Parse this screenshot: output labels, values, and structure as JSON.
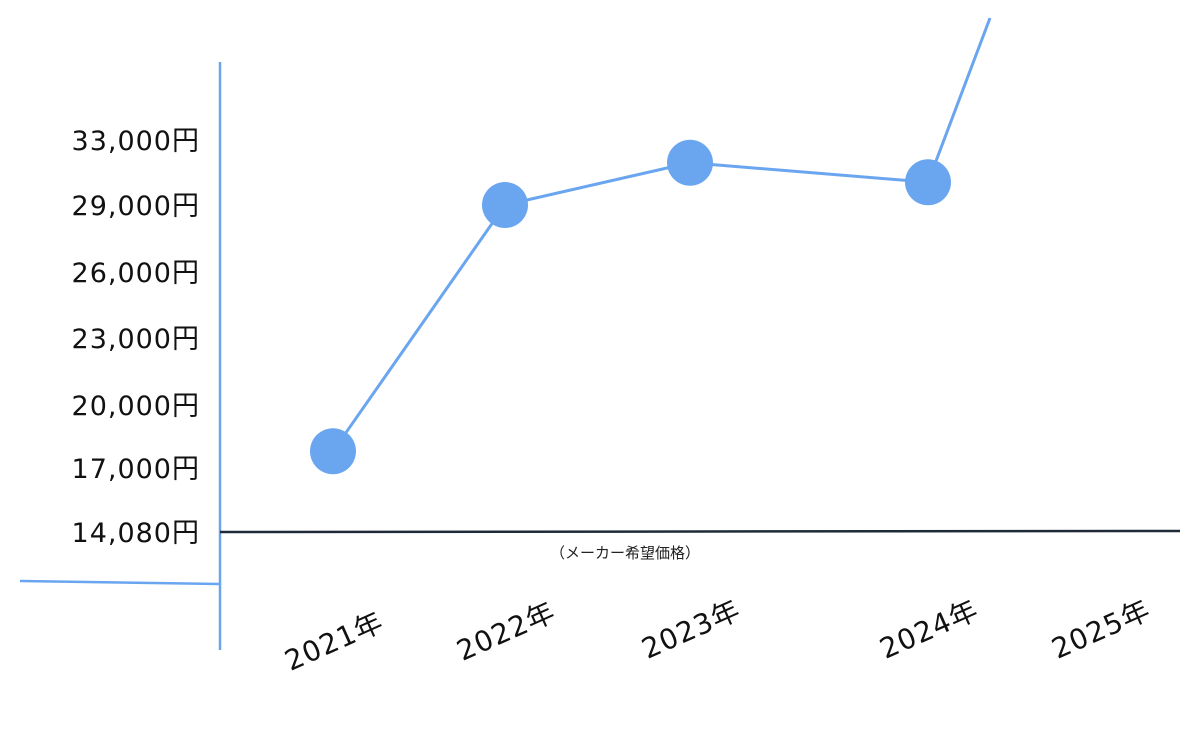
{
  "chart_data": {
    "type": "line",
    "title": "",
    "xlabel": "",
    "ylabel": "",
    "categories": [
      "2021年",
      "2022年",
      "2023年",
      "2024年",
      "2025年"
    ],
    "y_tick_labels": [
      "33,000円",
      "29,000円",
      "26,000円",
      "23,000円",
      "20,000円",
      "17,000円",
      "14,080円"
    ],
    "y_tick_values": [
      33000,
      29000,
      26000,
      23000,
      20000,
      17000,
      14080
    ],
    "series": [
      {
        "values": [
          17800,
          29000,
          31600,
          30400,
          null
        ],
        "continues_above_range_after": "2024年"
      }
    ],
    "reference_line": {
      "value": 14080,
      "label": "（メーカー希望価格）",
      "color": "#1e2a38"
    },
    "grid": false,
    "legend": "none",
    "colors": {
      "series": "#6aa5f0",
      "axis": "#6aa5f0"
    }
  }
}
